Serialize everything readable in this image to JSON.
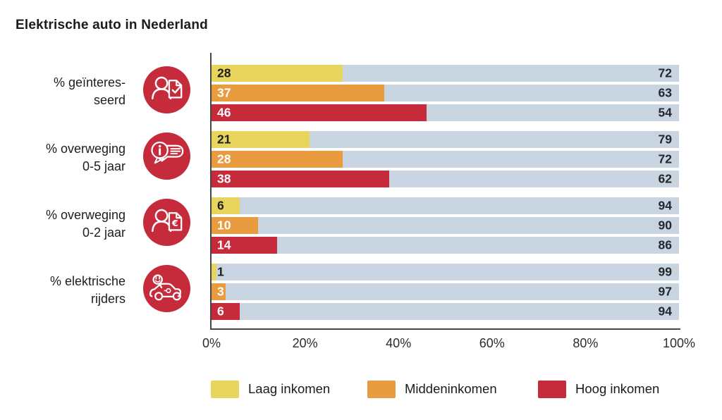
{
  "title": "Elektrische auto in Nederland",
  "chart_data": {
    "type": "bar",
    "orientation": "horizontal",
    "stacked": true,
    "unit": "%",
    "grid": false,
    "legend_position": "bottom",
    "icon_circle_color": "#C62B3C",
    "remainder_color": "#C8D4DF",
    "remainder_label_color": "#23272F",
    "x_axis": {
      "min": 0,
      "max": 100,
      "ticks": [
        "0%",
        "20%",
        "40%",
        "60%",
        "80%",
        "100%"
      ]
    },
    "series": [
      {
        "name": "Laag inkomen",
        "color": "#E8D55D",
        "value_label_color": "#1d1d1d"
      },
      {
        "name": "Middeninkomen",
        "color": "#E99C3F",
        "value_label_color": "#ffffff"
      },
      {
        "name": "Hoog inkomen",
        "color": "#C62B3C",
        "value_label_color": "#ffffff"
      }
    ],
    "groups": [
      {
        "label_lines": [
          "% geïnteres-",
          "seerd"
        ],
        "icon": "person-checklist-icon",
        "values": [
          28,
          37,
          46
        ],
        "remainders": [
          72,
          63,
          54
        ]
      },
      {
        "label_lines": [
          "% overweging",
          "0-5 jaar"
        ],
        "icon": "info-chat-bubbles-icon",
        "values": [
          21,
          28,
          38
        ],
        "remainders": [
          79,
          72,
          62
        ]
      },
      {
        "label_lines": [
          "% overweging",
          "0-2 jaar"
        ],
        "icon": "person-euro-document-icon",
        "values": [
          6,
          10,
          14
        ],
        "remainders": [
          94,
          90,
          86
        ]
      },
      {
        "label_lines": [
          "% elektrische",
          "rijders"
        ],
        "icon": "electric-car-icon",
        "values": [
          1,
          3,
          6
        ],
        "remainders": [
          99,
          97,
          94
        ]
      }
    ]
  }
}
